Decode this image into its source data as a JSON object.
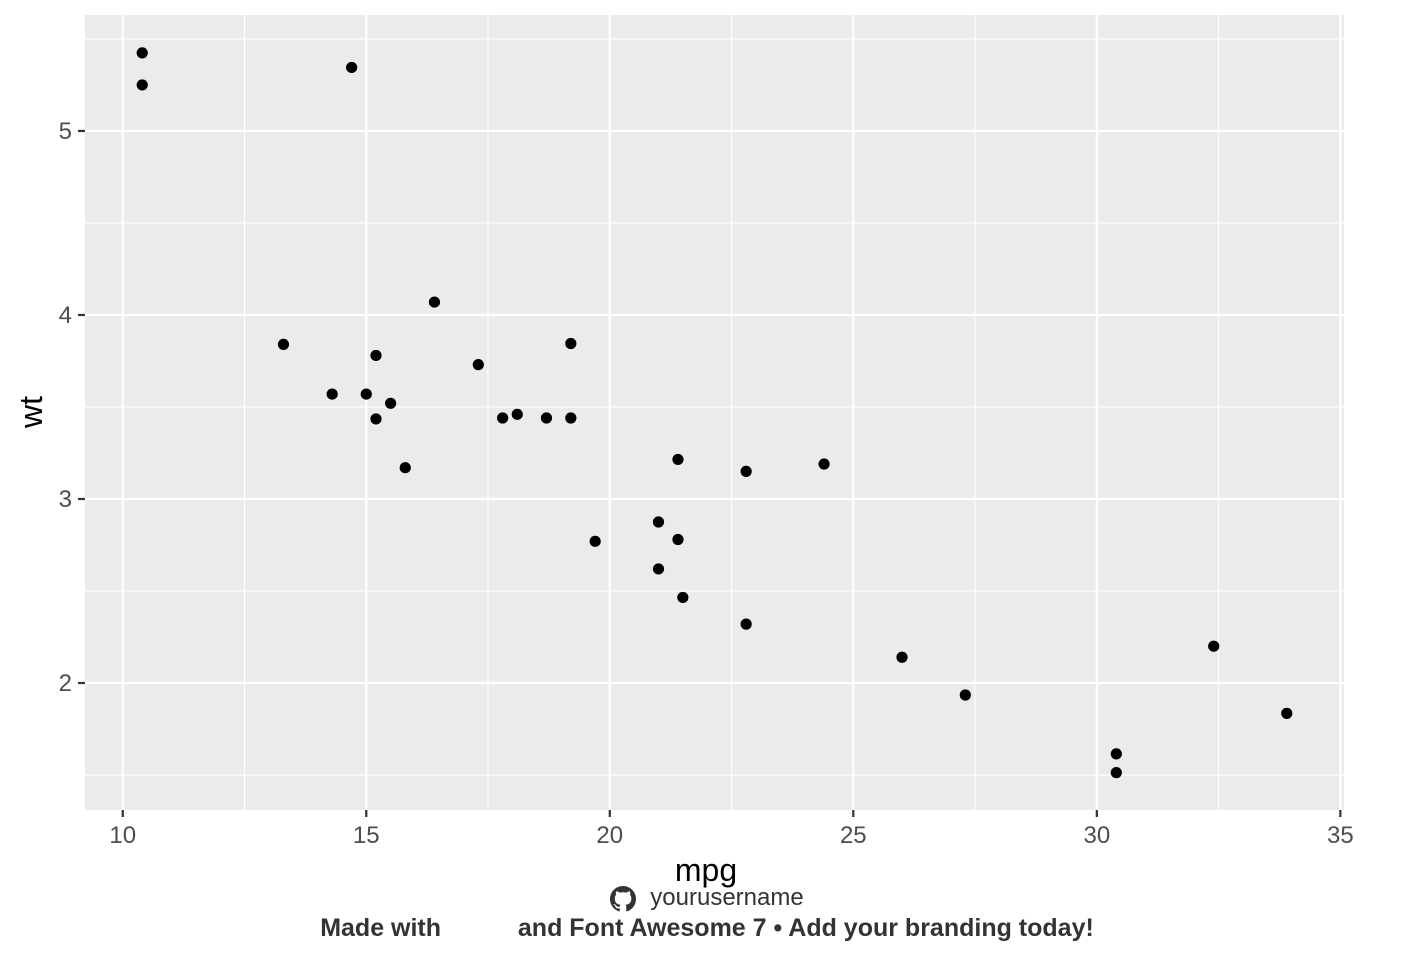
{
  "chart_data": {
    "type": "scatter",
    "xlabel": "mpg",
    "ylabel": "wt",
    "xlim": [
      9.225,
      35.075
    ],
    "ylim": [
      1.31,
      5.63
    ],
    "xticks": [
      10,
      15,
      20,
      25,
      30,
      35
    ],
    "yticks": [
      2,
      3,
      4,
      5
    ],
    "xticks_minor": [
      12.5,
      17.5,
      22.5,
      27.5,
      32.5
    ],
    "yticks_minor": [
      1.5,
      2.5,
      3.5,
      4.5,
      5.5
    ],
    "grid": true,
    "panel_color": "#ebebeb",
    "grid_color": "#ffffff",
    "point_color": "#000000",
    "points": [
      {
        "x": 21.0,
        "y": 2.62
      },
      {
        "x": 21.0,
        "y": 2.875
      },
      {
        "x": 22.8,
        "y": 2.32
      },
      {
        "x": 21.4,
        "y": 3.215
      },
      {
        "x": 18.7,
        "y": 3.44
      },
      {
        "x": 18.1,
        "y": 3.46
      },
      {
        "x": 14.3,
        "y": 3.57
      },
      {
        "x": 24.4,
        "y": 3.19
      },
      {
        "x": 22.8,
        "y": 3.15
      },
      {
        "x": 19.2,
        "y": 3.44
      },
      {
        "x": 17.8,
        "y": 3.44
      },
      {
        "x": 16.4,
        "y": 4.07
      },
      {
        "x": 17.3,
        "y": 3.73
      },
      {
        "x": 15.2,
        "y": 3.78
      },
      {
        "x": 10.4,
        "y": 5.25
      },
      {
        "x": 10.4,
        "y": 5.424
      },
      {
        "x": 14.7,
        "y": 5.345
      },
      {
        "x": 32.4,
        "y": 2.2
      },
      {
        "x": 30.4,
        "y": 1.615
      },
      {
        "x": 33.9,
        "y": 1.835
      },
      {
        "x": 21.5,
        "y": 2.465
      },
      {
        "x": 15.5,
        "y": 3.52
      },
      {
        "x": 15.2,
        "y": 3.435
      },
      {
        "x": 13.3,
        "y": 3.84
      },
      {
        "x": 19.2,
        "y": 3.845
      },
      {
        "x": 27.3,
        "y": 1.935
      },
      {
        "x": 26.0,
        "y": 2.14
      },
      {
        "x": 30.4,
        "y": 1.513
      },
      {
        "x": 15.8,
        "y": 3.17
      },
      {
        "x": 19.7,
        "y": 2.77
      },
      {
        "x": 15.0,
        "y": 3.57
      },
      {
        "x": 21.4,
        "y": 2.78
      }
    ]
  },
  "caption": {
    "icon": "github-icon",
    "username": "yourusername",
    "brand_prefix": "Made with",
    "glyph_1": "",
    "glyph_2": "",
    "brand_suffix": "and Font Awesome 7 • Add your branding today!"
  }
}
